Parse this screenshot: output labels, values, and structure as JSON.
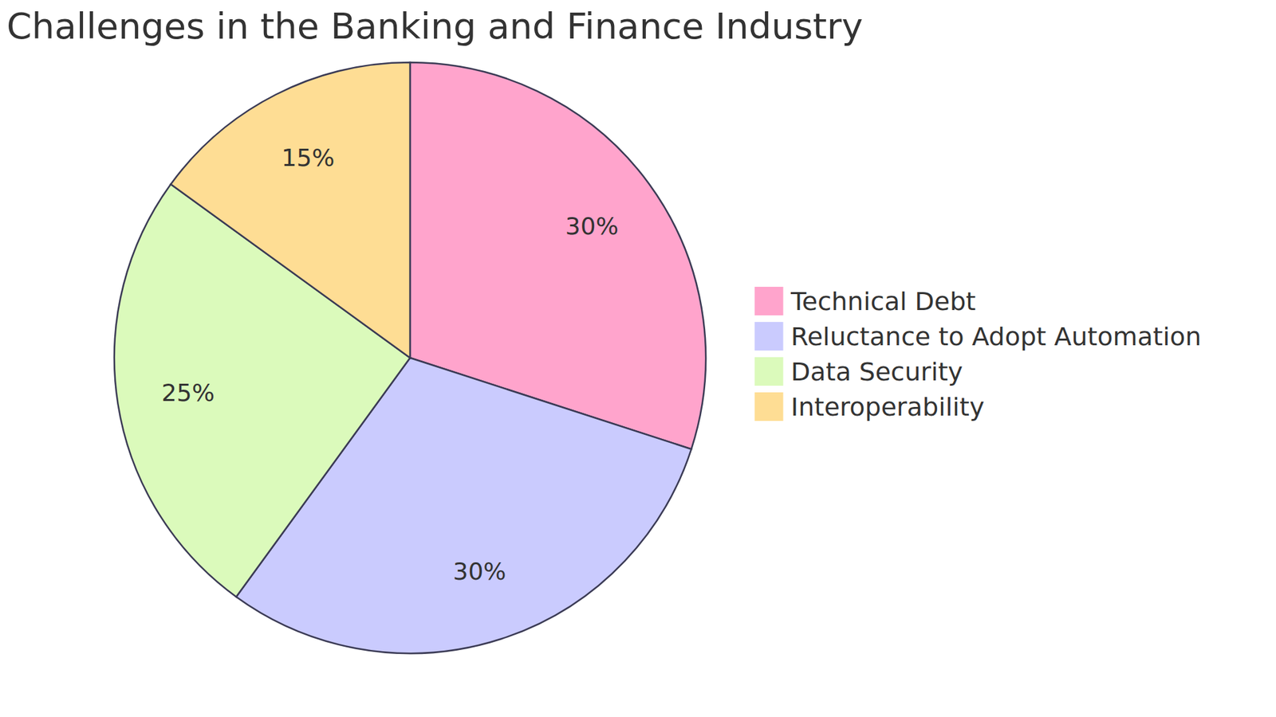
{
  "chart_data": {
    "type": "pie",
    "title": "Challenges in the Banking and Finance Industry",
    "categories": [
      "Technical Debt",
      "Reluctance to Adopt Automation",
      "Data Security",
      "Interoperability"
    ],
    "values": [
      30,
      30,
      25,
      15
    ],
    "value_labels": [
      "30%",
      "30%",
      "25%",
      "15%"
    ],
    "colors": [
      "#ffa4cc",
      "#cacbfe",
      "#dbfabb",
      "#fedd94"
    ],
    "data_labels": true,
    "legend": "right"
  }
}
